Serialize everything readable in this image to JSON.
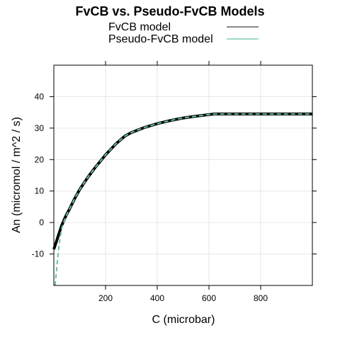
{
  "chart_data": {
    "type": "line",
    "title": "FvCB vs. Pseudo-FvCB Models",
    "xlabel": "C (microbar)",
    "ylabel": "An (micromol / m^2 / s)",
    "xlim": [
      0,
      1000
    ],
    "ylim": [
      -20,
      50
    ],
    "xticks": [
      200,
      400,
      600,
      800
    ],
    "yticks": [
      -10,
      0,
      10,
      20,
      30,
      40
    ],
    "grid": true,
    "legend_position": "top",
    "series": [
      {
        "name": "FvCB model",
        "color": "#000000",
        "style": "solid",
        "x": [
          0,
          10,
          20,
          30,
          45,
          60,
          80,
          100,
          130,
          160,
          200,
          240,
          275,
          300,
          350,
          400,
          450,
          500,
          550,
          600,
          620,
          700,
          800,
          900,
          1000
        ],
        "y": [
          -8.5,
          -6.0,
          -3.5,
          -1.0,
          1.8,
          4.2,
          7.5,
          10.5,
          14.2,
          17.5,
          21.5,
          25.0,
          27.5,
          28.6,
          30.2,
          31.4,
          32.4,
          33.2,
          33.8,
          34.3,
          34.5,
          34.5,
          34.5,
          34.5,
          34.5
        ]
      },
      {
        "name": "Pseudo-FvCB model",
        "color": "#66c2a5",
        "style": "dashed",
        "x": [
          5,
          10,
          15,
          20,
          25,
          30,
          40,
          50,
          60,
          80,
          100,
          130,
          160,
          200,
          240,
          275,
          300,
          350,
          400,
          450,
          500,
          550,
          600,
          620,
          700,
          800,
          900,
          1000
        ],
        "y": [
          -20,
          -15.5,
          -11.0,
          -7.5,
          -4.5,
          -2.0,
          0.5,
          2.5,
          4.2,
          7.5,
          10.5,
          14.2,
          17.5,
          21.5,
          25.0,
          27.5,
          28.6,
          30.2,
          31.4,
          32.4,
          33.2,
          33.8,
          34.3,
          34.5,
          34.5,
          34.5,
          34.5,
          34.5
        ]
      }
    ]
  }
}
